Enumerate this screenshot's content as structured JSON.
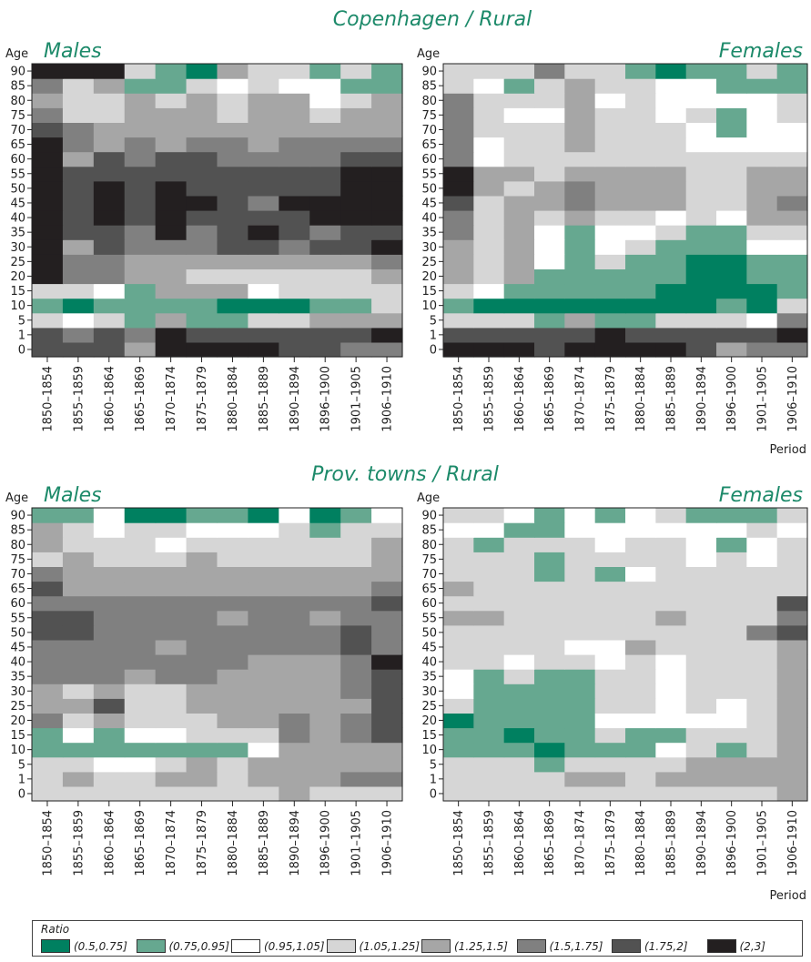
{
  "colors": [
    "#008060",
    "#66a890",
    "#ffffff",
    "#d6d6d6",
    "#a6a6a6",
    "#808080",
    "#525252",
    "#231f20"
  ],
  "legend": {
    "title": "Ratio",
    "items": [
      "(0.5,0.75]",
      "(0.75,0.95]",
      "(0.95,1.05]",
      "(1.05,1.25]",
      "(1.25,1.5]",
      "(1.5,1.75]",
      "(1.75,2]",
      "(2,3]"
    ]
  },
  "sections": [
    {
      "title": "Copenhagen / Rural"
    },
    {
      "title": "Prov. towns / Rural"
    }
  ],
  "chart_data": [
    {
      "type": "heatmap",
      "section": "Copenhagen / Rural",
      "title": "Males",
      "ylabel": "Age",
      "xlabel": "",
      "value_encoding": "class index into legend.items (0=(0.5,0.75] ... 7=(2,3])",
      "x": [
        "1850–1854",
        "1855–1859",
        "1860–1864",
        "1865–1869",
        "1870–1874",
        "1875–1879",
        "1880–1884",
        "1885–1889",
        "1890–1894",
        "1896–1900",
        "1901–1905",
        "1906–1910"
      ],
      "y": [
        "0",
        "1",
        "5",
        "10",
        "15",
        "20",
        "25",
        "30",
        "35",
        "40",
        "45",
        "50",
        "55",
        "60",
        "65",
        "70",
        "75",
        "80",
        "85",
        "90"
      ],
      "values": [
        [
          6,
          6,
          6,
          4,
          7,
          7,
          7,
          7,
          6,
          6,
          5,
          5
        ],
        [
          6,
          5,
          6,
          5,
          7,
          6,
          6,
          6,
          6,
          6,
          6,
          7
        ],
        [
          3,
          2,
          3,
          1,
          4,
          1,
          1,
          3,
          3,
          4,
          4,
          4
        ],
        [
          1,
          0,
          1,
          1,
          1,
          1,
          0,
          0,
          0,
          1,
          1,
          3
        ],
        [
          3,
          3,
          2,
          1,
          4,
          4,
          4,
          2,
          3,
          3,
          3,
          3
        ],
        [
          7,
          5,
          5,
          4,
          4,
          3,
          3,
          3,
          3,
          3,
          3,
          4
        ],
        [
          7,
          5,
          5,
          4,
          4,
          4,
          4,
          4,
          4,
          4,
          4,
          5
        ],
        [
          7,
          4,
          6,
          5,
          5,
          5,
          6,
          6,
          5,
          6,
          6,
          7
        ],
        [
          7,
          6,
          6,
          5,
          7,
          5,
          6,
          7,
          6,
          5,
          6,
          6
        ],
        [
          7,
          6,
          7,
          6,
          7,
          6,
          6,
          6,
          6,
          7,
          7,
          7
        ],
        [
          7,
          6,
          7,
          6,
          7,
          7,
          6,
          5,
          7,
          7,
          7,
          7
        ],
        [
          7,
          6,
          7,
          6,
          7,
          6,
          6,
          6,
          6,
          6,
          7,
          7
        ],
        [
          7,
          6,
          6,
          6,
          6,
          6,
          6,
          6,
          6,
          6,
          7,
          7
        ],
        [
          7,
          4,
          6,
          5,
          6,
          6,
          5,
          5,
          5,
          5,
          6,
          6
        ],
        [
          7,
          5,
          4,
          5,
          4,
          5,
          5,
          4,
          5,
          5,
          5,
          5
        ],
        [
          6,
          5,
          4,
          4,
          4,
          4,
          4,
          4,
          4,
          4,
          4,
          4
        ],
        [
          5,
          3,
          3,
          4,
          4,
          4,
          3,
          4,
          4,
          3,
          4,
          4
        ],
        [
          4,
          3,
          3,
          4,
          3,
          4,
          3,
          4,
          4,
          2,
          3,
          4
        ],
        [
          5,
          3,
          4,
          1,
          1,
          3,
          2,
          3,
          2,
          2,
          1,
          1
        ],
        [
          7,
          7,
          7,
          3,
          1,
          0,
          4,
          3,
          3,
          1,
          3,
          1
        ]
      ]
    },
    {
      "type": "heatmap",
      "section": "Copenhagen / Rural",
      "title": "Females",
      "ylabel": "Age",
      "xlabel": "Period",
      "value_encoding": "class index into legend.items (0=(0.5,0.75] ... 7=(2,3])",
      "x": [
        "1850–1854",
        "1855–1859",
        "1860–1864",
        "1865–1869",
        "1870–1874",
        "1875–1879",
        "1880–1884",
        "1885–1889",
        "1890–1894",
        "1896–1900",
        "1901–1905",
        "1906–1910"
      ],
      "y": [
        "0",
        "1",
        "5",
        "10",
        "15",
        "20",
        "25",
        "30",
        "35",
        "40",
        "45",
        "50",
        "55",
        "60",
        "65",
        "70",
        "75",
        "80",
        "85",
        "90"
      ],
      "values": [
        [
          7,
          7,
          7,
          6,
          7,
          7,
          7,
          7,
          6,
          4,
          5,
          5
        ],
        [
          6,
          6,
          6,
          6,
          6,
          7,
          6,
          6,
          6,
          6,
          6,
          7
        ],
        [
          3,
          3,
          3,
          1,
          4,
          1,
          1,
          3,
          3,
          3,
          2,
          5
        ],
        [
          1,
          0,
          0,
          0,
          0,
          0,
          0,
          0,
          0,
          1,
          0,
          3
        ],
        [
          3,
          2,
          1,
          1,
          1,
          1,
          1,
          0,
          0,
          0,
          0,
          1
        ],
        [
          4,
          3,
          4,
          1,
          1,
          1,
          1,
          1,
          0,
          0,
          1,
          1
        ],
        [
          4,
          3,
          4,
          2,
          1,
          3,
          1,
          1,
          0,
          0,
          1,
          1
        ],
        [
          4,
          3,
          4,
          2,
          1,
          2,
          3,
          1,
          1,
          1,
          2,
          2
        ],
        [
          5,
          3,
          4,
          2,
          1,
          2,
          2,
          3,
          1,
          1,
          3,
          3
        ],
        [
          5,
          3,
          4,
          3,
          4,
          3,
          3,
          2,
          3,
          2,
          4,
          4
        ],
        [
          6,
          3,
          4,
          4,
          5,
          4,
          4,
          4,
          3,
          3,
          4,
          5
        ],
        [
          7,
          4,
          3,
          4,
          5,
          4,
          4,
          4,
          3,
          3,
          4,
          4
        ],
        [
          7,
          4,
          4,
          3,
          4,
          4,
          4,
          4,
          3,
          3,
          4,
          4
        ],
        [
          5,
          2,
          3,
          3,
          3,
          3,
          3,
          3,
          3,
          3,
          3,
          3
        ],
        [
          5,
          2,
          3,
          3,
          4,
          3,
          3,
          3,
          2,
          2,
          2,
          2
        ],
        [
          5,
          3,
          3,
          3,
          4,
          3,
          3,
          3,
          2,
          1,
          2,
          2
        ],
        [
          5,
          3,
          2,
          2,
          4,
          3,
          3,
          2,
          3,
          1,
          2,
          3
        ],
        [
          5,
          3,
          3,
          3,
          4,
          2,
          3,
          2,
          2,
          2,
          2,
          3
        ],
        [
          3,
          2,
          1,
          3,
          4,
          3,
          3,
          2,
          2,
          1,
          1,
          1
        ],
        [
          3,
          3,
          3,
          5,
          3,
          3,
          1,
          0,
          1,
          1,
          3,
          1
        ]
      ]
    },
    {
      "type": "heatmap",
      "section": "Prov. towns / Rural",
      "title": "Males",
      "ylabel": "Age",
      "xlabel": "",
      "value_encoding": "class index into legend.items (0=(0.5,0.75] ... 7=(2,3])",
      "x": [
        "1850–1854",
        "1855–1859",
        "1860–1864",
        "1865–1869",
        "1870–1874",
        "1875–1879",
        "1880–1884",
        "1885–1889",
        "1890–1894",
        "1896–1900",
        "1901–1905",
        "1906–1910"
      ],
      "y": [
        "0",
        "1",
        "5",
        "10",
        "15",
        "20",
        "25",
        "30",
        "35",
        "40",
        "45",
        "50",
        "55",
        "60",
        "65",
        "70",
        "75",
        "80",
        "85",
        "90"
      ],
      "values": [
        [
          3,
          3,
          3,
          3,
          3,
          3,
          3,
          3,
          4,
          3,
          3,
          3
        ],
        [
          3,
          4,
          3,
          3,
          4,
          4,
          3,
          4,
          4,
          4,
          5,
          5
        ],
        [
          3,
          3,
          2,
          2,
          3,
          4,
          3,
          4,
          4,
          4,
          4,
          4
        ],
        [
          1,
          1,
          1,
          1,
          1,
          1,
          1,
          2,
          4,
          4,
          4,
          4
        ],
        [
          1,
          2,
          1,
          2,
          2,
          3,
          3,
          3,
          5,
          4,
          5,
          6
        ],
        [
          5,
          3,
          4,
          3,
          3,
          3,
          4,
          4,
          5,
          4,
          5,
          6
        ],
        [
          4,
          4,
          6,
          3,
          3,
          4,
          4,
          4,
          4,
          4,
          4,
          6
        ],
        [
          4,
          3,
          4,
          3,
          3,
          4,
          4,
          4,
          4,
          4,
          5,
          6
        ],
        [
          5,
          5,
          5,
          4,
          5,
          5,
          4,
          4,
          4,
          4,
          5,
          6
        ],
        [
          5,
          5,
          5,
          5,
          5,
          5,
          5,
          4,
          4,
          4,
          5,
          7
        ],
        [
          5,
          5,
          5,
          5,
          4,
          5,
          5,
          5,
          5,
          5,
          6,
          5
        ],
        [
          6,
          6,
          5,
          5,
          5,
          5,
          5,
          5,
          5,
          5,
          6,
          5
        ],
        [
          6,
          6,
          5,
          5,
          5,
          5,
          4,
          5,
          5,
          4,
          5,
          5
        ],
        [
          5,
          5,
          5,
          5,
          5,
          5,
          5,
          5,
          5,
          5,
          5,
          6
        ],
        [
          6,
          4,
          4,
          4,
          4,
          4,
          4,
          4,
          4,
          4,
          4,
          5
        ],
        [
          5,
          4,
          4,
          4,
          4,
          4,
          4,
          4,
          4,
          4,
          4,
          4
        ],
        [
          3,
          4,
          3,
          3,
          3,
          4,
          3,
          3,
          3,
          3,
          3,
          4
        ],
        [
          4,
          3,
          3,
          3,
          2,
          3,
          3,
          3,
          3,
          3,
          3,
          4
        ],
        [
          4,
          3,
          2,
          3,
          3,
          2,
          2,
          2,
          3,
          1,
          3,
          3
        ],
        [
          1,
          1,
          2,
          0,
          0,
          1,
          1,
          0,
          2,
          0,
          1,
          2
        ]
      ]
    },
    {
      "type": "heatmap",
      "section": "Prov. towns / Rural",
      "title": "Females",
      "ylabel": "Age",
      "xlabel": "Period",
      "value_encoding": "class index into legend.items (0=(0.5,0.75] ... 7=(2,3])",
      "x": [
        "1850–1854",
        "1855–1859",
        "1860–1864",
        "1865–1869",
        "1870–1874",
        "1875–1879",
        "1880–1884",
        "1885–1889",
        "1890–1894",
        "1896–1900",
        "1901–1905",
        "1906–1910"
      ],
      "y": [
        "0",
        "1",
        "5",
        "10",
        "15",
        "20",
        "25",
        "30",
        "35",
        "40",
        "45",
        "50",
        "55",
        "60",
        "65",
        "70",
        "75",
        "80",
        "85",
        "90"
      ],
      "values": [
        [
          3,
          3,
          3,
          3,
          3,
          3,
          3,
          3,
          3,
          3,
          3,
          4
        ],
        [
          3,
          3,
          3,
          3,
          4,
          4,
          3,
          4,
          4,
          4,
          4,
          4
        ],
        [
          3,
          3,
          3,
          1,
          3,
          3,
          3,
          3,
          4,
          4,
          4,
          4
        ],
        [
          1,
          1,
          1,
          0,
          1,
          1,
          1,
          2,
          3,
          1,
          3,
          4
        ],
        [
          1,
          1,
          0,
          1,
          1,
          3,
          1,
          1,
          3,
          3,
          3,
          4
        ],
        [
          0,
          1,
          1,
          1,
          1,
          2,
          2,
          2,
          2,
          2,
          3,
          4
        ],
        [
          3,
          1,
          1,
          1,
          1,
          3,
          3,
          2,
          3,
          2,
          3,
          4
        ],
        [
          2,
          1,
          1,
          1,
          1,
          3,
          3,
          2,
          3,
          3,
          3,
          4
        ],
        [
          2,
          1,
          3,
          1,
          1,
          3,
          3,
          2,
          3,
          3,
          3,
          4
        ],
        [
          3,
          3,
          2,
          3,
          3,
          2,
          3,
          2,
          3,
          3,
          3,
          4
        ],
        [
          3,
          3,
          3,
          3,
          2,
          2,
          4,
          3,
          3,
          3,
          3,
          4
        ],
        [
          3,
          3,
          3,
          3,
          3,
          3,
          3,
          3,
          3,
          3,
          5,
          6
        ],
        [
          4,
          4,
          3,
          3,
          3,
          3,
          3,
          4,
          3,
          3,
          3,
          5
        ],
        [
          3,
          3,
          3,
          3,
          3,
          3,
          3,
          3,
          3,
          3,
          3,
          6
        ],
        [
          4,
          3,
          3,
          3,
          3,
          3,
          3,
          3,
          3,
          3,
          3,
          3
        ],
        [
          3,
          3,
          3,
          1,
          3,
          1,
          2,
          3,
          3,
          3,
          3,
          3
        ],
        [
          3,
          3,
          3,
          1,
          3,
          3,
          3,
          3,
          2,
          3,
          2,
          3
        ],
        [
          3,
          1,
          3,
          3,
          3,
          2,
          3,
          3,
          2,
          1,
          2,
          3
        ],
        [
          2,
          2,
          1,
          1,
          2,
          2,
          2,
          2,
          2,
          2,
          3,
          2
        ],
        [
          3,
          3,
          2,
          1,
          2,
          1,
          2,
          3,
          1,
          1,
          1,
          3
        ]
      ]
    }
  ]
}
